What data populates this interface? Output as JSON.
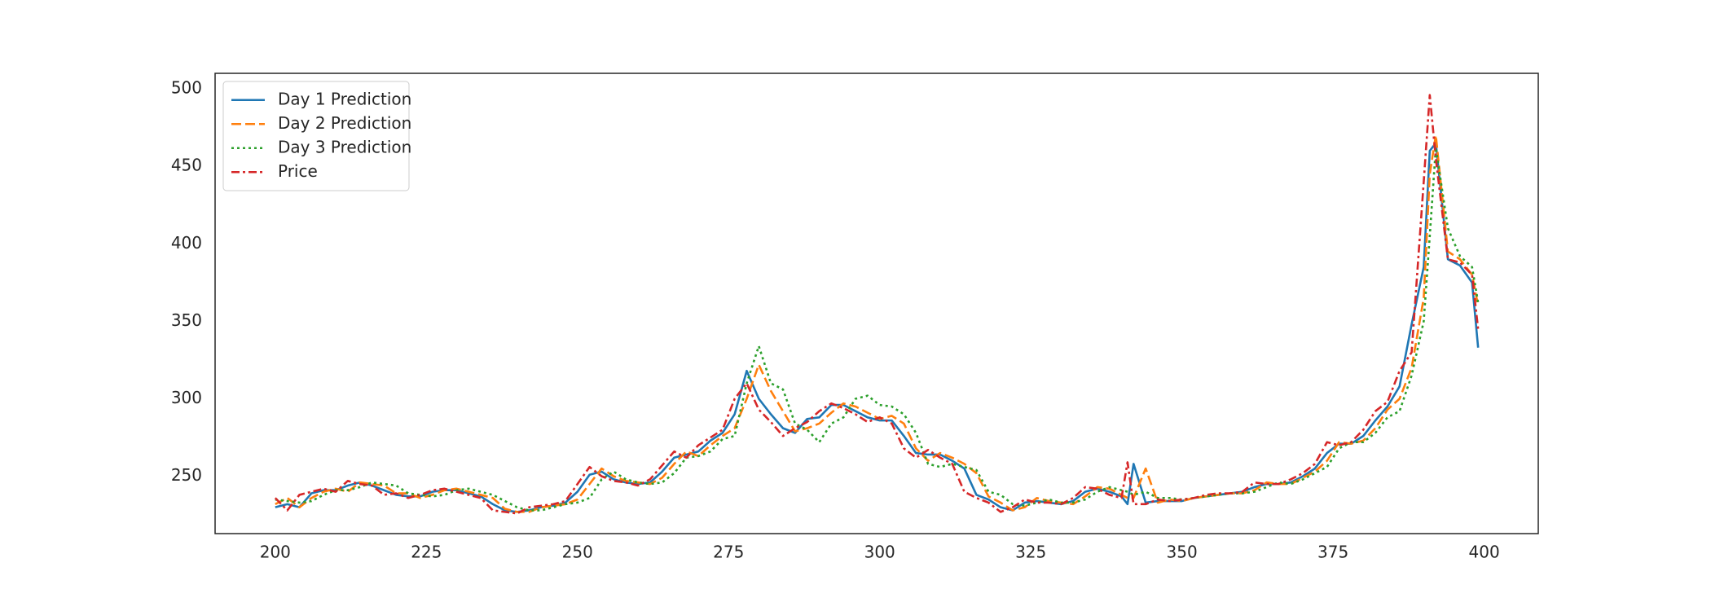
{
  "chart_data": {
    "type": "line",
    "x": [
      200,
      202,
      204,
      206,
      208,
      210,
      212,
      214,
      216,
      218,
      220,
      222,
      224,
      226,
      228,
      230,
      232,
      234,
      236,
      238,
      240,
      242,
      244,
      246,
      248,
      250,
      252,
      254,
      256,
      258,
      260,
      262,
      264,
      266,
      268,
      270,
      272,
      274,
      276,
      278,
      280,
      282,
      284,
      286,
      288,
      290,
      292,
      294,
      296,
      298,
      300,
      302,
      304,
      306,
      308,
      310,
      312,
      314,
      316,
      318,
      320,
      322,
      324,
      326,
      328,
      330,
      332,
      334,
      336,
      338,
      340,
      341,
      342,
      344,
      346,
      348,
      350,
      352,
      354,
      356,
      358,
      360,
      362,
      364,
      366,
      368,
      370,
      372,
      374,
      376,
      378,
      380,
      382,
      384,
      386,
      388,
      390,
      391,
      392,
      394,
      396,
      398,
      399
    ],
    "series": [
      {
        "name": "Day 1 Prediction",
        "color": "#1f77b4",
        "linestyle": "solid",
        "values": [
          230,
          232,
          230,
          239,
          241,
          241,
          244,
          246,
          244,
          241,
          238,
          237,
          237,
          240,
          241,
          241,
          239,
          237,
          232,
          228,
          227,
          228,
          230,
          231,
          233,
          240,
          251,
          253,
          248,
          246,
          245,
          246,
          253,
          262,
          264,
          266,
          273,
          278,
          290,
          318,
          300,
          290,
          281,
          278,
          287,
          288,
          296,
          296,
          292,
          288,
          286,
          286,
          276,
          265,
          264,
          264,
          260,
          255,
          238,
          235,
          230,
          228,
          233,
          234,
          233,
          232,
          234,
          240,
          242,
          240,
          237,
          232,
          258,
          233,
          234,
          234,
          234,
          236,
          237,
          238,
          239,
          240,
          243,
          245,
          245,
          246,
          250,
          255,
          265,
          271,
          271,
          276,
          286,
          295,
          308,
          348,
          385,
          460,
          465,
          390,
          386,
          375,
          333
        ]
      },
      {
        "name": "Day 2 Prediction",
        "color": "#ff7f0e",
        "linestyle": "dashed",
        "values": [
          232,
          236,
          230,
          236,
          240,
          242,
          240,
          246,
          245,
          244,
          239,
          239,
          236,
          238,
          241,
          242,
          240,
          238,
          236,
          229,
          227,
          227,
          230,
          231,
          232,
          235,
          245,
          255,
          250,
          247,
          246,
          245,
          249,
          258,
          266,
          263,
          270,
          276,
          281,
          300,
          322,
          305,
          292,
          279,
          281,
          284,
          291,
          297,
          295,
          291,
          287,
          289,
          284,
          268,
          260,
          265,
          262,
          258,
          252,
          237,
          233,
          228,
          230,
          236,
          234,
          233,
          232,
          237,
          243,
          242,
          238,
          236,
          236,
          255,
          233,
          235,
          234,
          236,
          237,
          238,
          239,
          239,
          241,
          246,
          245,
          245,
          249,
          253,
          260,
          272,
          271,
          273,
          281,
          293,
          300,
          320,
          365,
          445,
          470,
          395,
          390,
          380,
          360
        ]
      },
      {
        "name": "Day 3 Prediction",
        "color": "#2ca02c",
        "linestyle": "dotted",
        "values": [
          235,
          234,
          233,
          234,
          238,
          241,
          241,
          243,
          246,
          245,
          244,
          239,
          238,
          237,
          238,
          241,
          242,
          240,
          238,
          234,
          230,
          228,
          228,
          230,
          232,
          233,
          236,
          248,
          253,
          248,
          246,
          245,
          246,
          252,
          262,
          263,
          266,
          274,
          276,
          310,
          334,
          310,
          306,
          284,
          280,
          272,
          284,
          288,
          300,
          302,
          296,
          295,
          290,
          278,
          258,
          256,
          258,
          256,
          254,
          240,
          238,
          232,
          231,
          233,
          235,
          233,
          233,
          235,
          240,
          243,
          241,
          240,
          238,
          240,
          236,
          236,
          235,
          236,
          237,
          238,
          239,
          239,
          240,
          243,
          246,
          245,
          248,
          252,
          256,
          268,
          272,
          272,
          278,
          288,
          292,
          315,
          350,
          405,
          462,
          410,
          392,
          385,
          362
        ]
      },
      {
        "name": "Price",
        "color": "#d62728",
        "linestyle": "dashdot",
        "values": [
          236,
          228,
          238,
          240,
          242,
          240,
          247,
          245,
          244,
          238,
          239,
          236,
          238,
          241,
          242,
          240,
          238,
          236,
          228,
          227,
          226,
          230,
          231,
          232,
          234,
          245,
          256,
          250,
          247,
          246,
          244,
          248,
          257,
          266,
          262,
          270,
          275,
          280,
          300,
          310,
          293,
          285,
          276,
          281,
          285,
          292,
          297,
          294,
          290,
          285,
          288,
          284,
          268,
          262,
          267,
          262,
          258,
          240,
          236,
          233,
          227,
          230,
          235,
          233,
          233,
          232,
          236,
          243,
          242,
          238,
          236,
          259,
          232,
          232,
          235,
          234,
          235,
          236,
          238,
          239,
          239,
          240,
          246,
          245,
          245,
          248,
          252,
          258,
          272,
          270,
          272,
          280,
          292,
          298,
          318,
          330,
          440,
          496,
          455,
          390,
          388,
          380,
          345
        ]
      }
    ],
    "xlim": [
      190.05,
      408.95
    ],
    "xticks": [
      200,
      225,
      250,
      275,
      300,
      325,
      350,
      375,
      400
    ],
    "ylim": [
      213,
      510
    ],
    "yticks": [
      250,
      300,
      350,
      400,
      450,
      500
    ],
    "grid": false,
    "legend": "upper left"
  }
}
